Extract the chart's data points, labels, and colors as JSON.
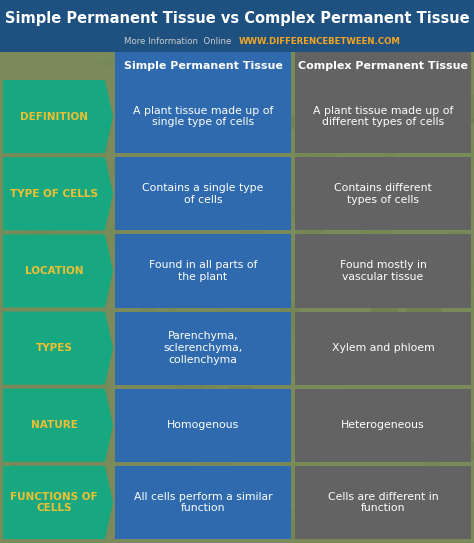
{
  "title": "Simple Permanent Tissue vs Complex Permanent Tissue",
  "subtitle_plain": "More Information  Online  ",
  "subtitle_url": "WWW.DIFFERENCEBETWEEN.COM",
  "col1_header": "Simple Permanent Tissue",
  "col2_header": "Complex Permanent Tissue",
  "rows": [
    {
      "label": "DEFINITION",
      "col1": "A plant tissue made up of\nsingle type of cells",
      "col2": "A plant tissue made up of\ndifferent types of cells"
    },
    {
      "label": "TYPE OF CELLS",
      "col1": "Contains a single type\nof cells",
      "col2": "Contains different\ntypes of cells"
    },
    {
      "label": "LOCATION",
      "col1": "Found in all parts of\nthe plant",
      "col2": "Found mostly in\nvascular tissue"
    },
    {
      "label": "TYPES",
      "col1": "Parenchyma,\nsclerenchyma,\ncollenchyma",
      "col2": "Xylem and phloem"
    },
    {
      "label": "NATURE",
      "col1": "Homogenous",
      "col2": "Heterogeneous"
    },
    {
      "label": "FUNCTIONS OF\nCELLS",
      "col1": "All cells perform a similar\nfunction",
      "col2": "Cells are different in\nfunction"
    }
  ],
  "title_bg": "#1e5080",
  "title_color": "#ffffff",
  "subtitle_color": "#cccccc",
  "url_color": "#f5a623",
  "header_col1_bg": "#2e6aad",
  "header_col2_bg": "#636363",
  "header_text_color": "#ffffff",
  "label_bg": "#17a882",
  "label_text_color": "#f0c030",
  "col1_bg": "#2e6aad",
  "col2_bg": "#636363",
  "cell_text_color": "#ffffff",
  "bg_color": "#7a8a5a"
}
